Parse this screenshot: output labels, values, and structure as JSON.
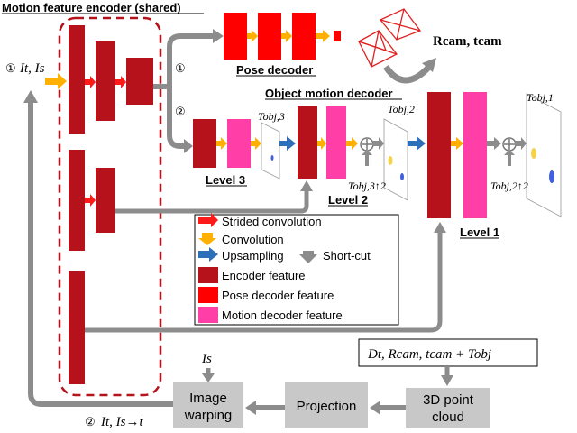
{
  "title": "Motion feature encoder (shared)",
  "pose_decoder": {
    "label": "Pose decoder",
    "marker": "①"
  },
  "object_motion_decoder": {
    "label": "Object motion decoder",
    "marker": "②"
  },
  "levels": {
    "level1": "Level 1",
    "level2": "Level 2",
    "level3": "Level 3"
  },
  "inputs": {
    "marker1": "①",
    "input1": "It, Is",
    "marker2": "②",
    "input2": "It, Is→t",
    "is_label": "Is"
  },
  "pose_output": "Rcam, tcam",
  "obj_maps": {
    "t3": "Tobj,3",
    "t2": "Tobj,2",
    "t1": "Tobj,1",
    "up3": "Tobj,3↑2",
    "up2": "Tobj,2↑2"
  },
  "sum_box": "Dt, Rcam, tcam + Tobj",
  "process_boxes": {
    "warping_line1": "Image",
    "warping_line2": "warping",
    "projection": "Projection",
    "cloud_line1": "3D point",
    "cloud_line2": "cloud"
  },
  "legend": {
    "strided": "Strided convolution",
    "conv": "Convolution",
    "upsampling": "Upsampling",
    "shortcut": "Short-cut",
    "encoder": "Encoder feature",
    "pose": "Pose decoder feature",
    "motion": "Motion decoder feature"
  },
  "colors": {
    "encoder": "#b5121b",
    "pose": "#ff0000",
    "motion": "#ff3fa7",
    "conv_arrow": "#ffb000",
    "strided_arrow": "#ff1a1a",
    "up_arrow": "#2e6fba",
    "gray": "#8c8c8c",
    "box_gray": "#c8c8c8",
    "dashed": "#b5121b"
  }
}
